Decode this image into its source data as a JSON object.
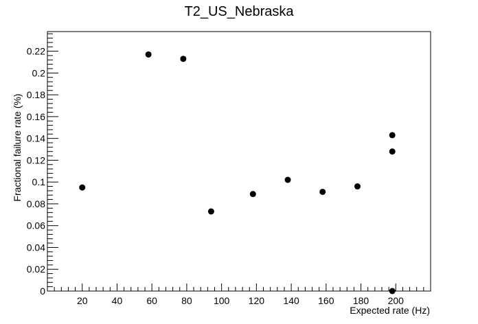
{
  "chart_data": {
    "type": "scatter",
    "title": "T2_US_Nebraska",
    "xlabel": "Expected rate (Hz)",
    "ylabel": "Fractional failure rate (%)",
    "xlim": [
      0,
      220
    ],
    "ylim": [
      0,
      0.238
    ],
    "x_ticks": [
      20,
      40,
      60,
      80,
      100,
      120,
      140,
      160,
      180,
      200
    ],
    "y_ticks": [
      0,
      0.02,
      0.04,
      0.06,
      0.08,
      0.1,
      0.12,
      0.14,
      0.16,
      0.18,
      0.2,
      0.22
    ],
    "x_tick_labels": [
      "20",
      "40",
      "60",
      "80",
      "100",
      "120",
      "140",
      "160",
      "180",
      "200"
    ],
    "y_tick_labels": [
      "0",
      "0.02",
      "0.04",
      "0.06",
      "0.08",
      "0.1",
      "0.12",
      "0.14",
      "0.16",
      "0.18",
      "0.2",
      "0.22"
    ],
    "points": [
      {
        "x": 20,
        "y": 0.095
      },
      {
        "x": 58,
        "y": 0.217
      },
      {
        "x": 78,
        "y": 0.213
      },
      {
        "x": 94,
        "y": 0.073
      },
      {
        "x": 118,
        "y": 0.089
      },
      {
        "x": 138,
        "y": 0.102
      },
      {
        "x": 158,
        "y": 0.091
      },
      {
        "x": 178,
        "y": 0.096
      },
      {
        "x": 198,
        "y": 0.143
      },
      {
        "x": 198,
        "y": 0.128
      },
      {
        "x": 198,
        "y": 0.0
      }
    ],
    "marker_color": "#000000",
    "grid": false,
    "legend": "none"
  }
}
